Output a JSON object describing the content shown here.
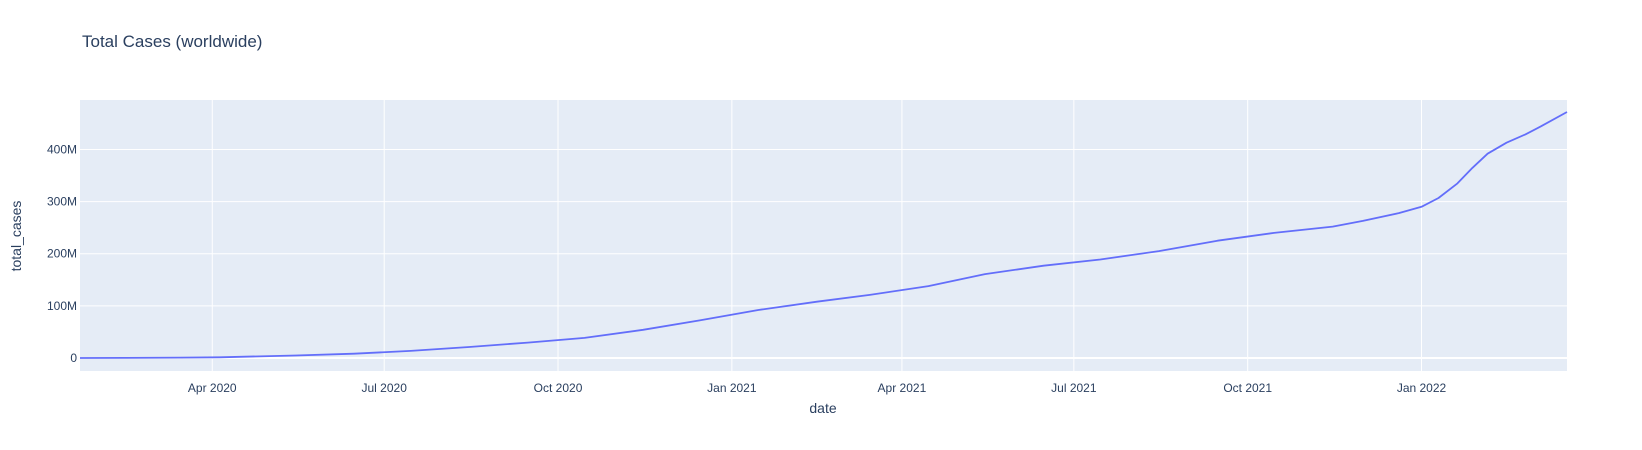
{
  "chart_data": {
    "type": "line",
    "title": "Total Cases (worldwide)",
    "xlabel": "date",
    "ylabel": "total_cases",
    "xlim": [
      "2020-01-22",
      "2022-03-19"
    ],
    "ylim": [
      -25000000,
      495000000
    ],
    "grid": true,
    "x_ticks": [
      {
        "date": "2020-04-01",
        "label": "Apr 2020"
      },
      {
        "date": "2020-07-01",
        "label": "Jul 2020"
      },
      {
        "date": "2020-10-01",
        "label": "Oct 2020"
      },
      {
        "date": "2021-01-01",
        "label": "Jan 2021"
      },
      {
        "date": "2021-04-01",
        "label": "Apr 2021"
      },
      {
        "date": "2021-07-01",
        "label": "Jul 2021"
      },
      {
        "date": "2021-10-01",
        "label": "Oct 2021"
      },
      {
        "date": "2022-01-01",
        "label": "Jan 2022"
      }
    ],
    "y_ticks": [
      {
        "value": 0,
        "label": "0"
      },
      {
        "value": 100000000,
        "label": "100M"
      },
      {
        "value": 200000000,
        "label": "200M"
      },
      {
        "value": 300000000,
        "label": "300M"
      },
      {
        "value": 400000000,
        "label": "400M"
      }
    ],
    "series": [
      {
        "color": "#636efa",
        "points": [
          [
            "2020-01-22",
            0
          ],
          [
            "2020-02-15",
            100000
          ],
          [
            "2020-03-15",
            700000
          ],
          [
            "2020-04-05",
            1300000
          ],
          [
            "2020-05-15",
            4800000
          ],
          [
            "2020-06-15",
            8200000
          ],
          [
            "2020-07-15",
            13500000
          ],
          [
            "2020-08-15",
            21000000
          ],
          [
            "2020-09-15",
            29500000
          ],
          [
            "2020-10-15",
            38500000
          ],
          [
            "2020-11-15",
            54000000
          ],
          [
            "2020-12-15",
            72000000
          ],
          [
            "2021-01-15",
            92000000
          ],
          [
            "2021-02-15",
            108000000
          ],
          [
            "2021-03-15",
            121000000
          ],
          [
            "2021-04-15",
            138000000
          ],
          [
            "2021-05-15",
            161000000
          ],
          [
            "2021-06-15",
            177000000
          ],
          [
            "2021-07-15",
            189000000
          ],
          [
            "2021-08-15",
            205000000
          ],
          [
            "2021-09-15",
            225000000
          ],
          [
            "2021-10-15",
            240000000
          ],
          [
            "2021-11-15",
            252000000
          ],
          [
            "2021-12-01",
            263000000
          ],
          [
            "2021-12-20",
            278000000
          ],
          [
            "2022-01-01",
            290000000
          ],
          [
            "2022-01-10",
            307000000
          ],
          [
            "2022-01-20",
            335000000
          ],
          [
            "2022-01-28",
            365000000
          ],
          [
            "2022-02-05",
            392000000
          ],
          [
            "2022-02-15",
            413000000
          ],
          [
            "2022-02-25",
            429000000
          ],
          [
            "2022-03-05",
            444000000
          ],
          [
            "2022-03-19",
            472000000
          ]
        ]
      }
    ]
  }
}
